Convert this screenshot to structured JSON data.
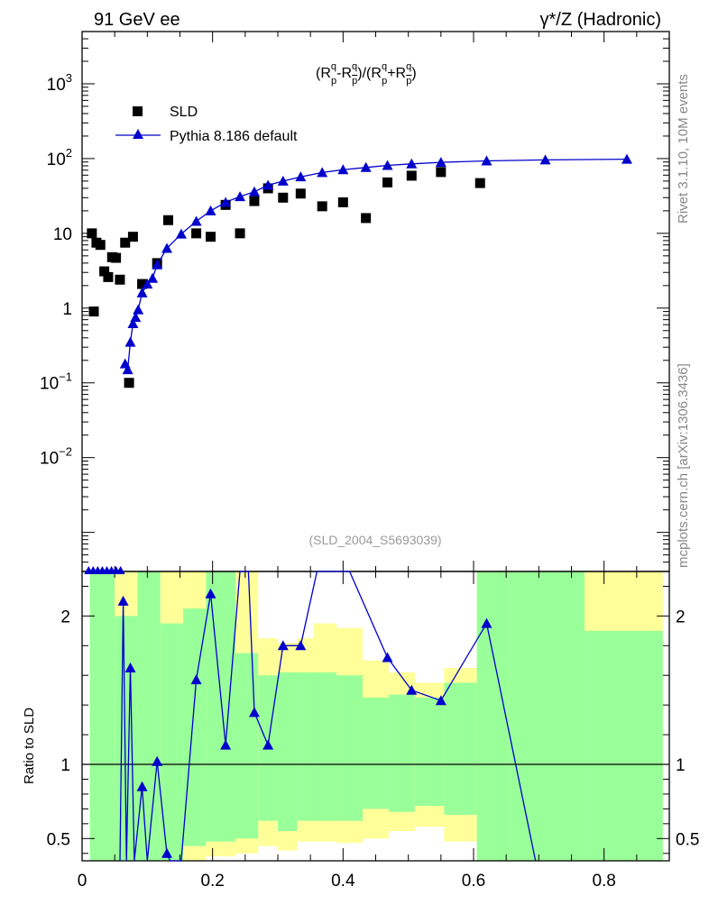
{
  "header": {
    "left": "91 GeV ee",
    "right": "γ*/Z (Hadronic)"
  },
  "side_labels": {
    "rivet": "Rivet 3.1.10,  10M events",
    "site": "mcplots.cern.ch [arXiv:1306.3436]"
  },
  "colors": {
    "data": "#000000",
    "mc": "#0000cc",
    "band_inner": "#99ff99",
    "band_outer": "#ffff99"
  },
  "chart_data": [
    {
      "type": "scatter",
      "title_parts": {
        "open": "(R",
        "minus": "-R",
        "mid": ")/(R",
        "plus": "+R",
        "close": ")",
        "sup": "q",
        "sub": "p",
        "subbar": "p"
      },
      "analysis": "(SLD_2004_S5693039)",
      "yscale": "log",
      "xlim": [
        0,
        0.9
      ],
      "ylim": [
        0.0003,
        5000
      ],
      "yticks": [
        {
          "v": 0.01,
          "base": "10",
          "exp": "−2"
        },
        {
          "v": 0.1,
          "base": "10",
          "exp": "−1"
        },
        {
          "v": 1,
          "base": "1",
          "exp": ""
        },
        {
          "v": 10,
          "base": "10",
          "exp": ""
        },
        {
          "v": 100,
          "base": "10",
          "exp": "2"
        },
        {
          "v": 1000,
          "base": "10",
          "exp": "3"
        }
      ],
      "legend_position": "top-left",
      "series": [
        {
          "name": "SLD",
          "marker": "square",
          "points": [
            [
              0.015,
              10
            ],
            [
              0.018,
              0.9
            ],
            [
              0.022,
              7.5
            ],
            [
              0.028,
              7
            ],
            [
              0.034,
              3.1
            ],
            [
              0.04,
              2.6
            ],
            [
              0.046,
              4.8
            ],
            [
              0.052,
              4.7
            ],
            [
              0.058,
              2.4
            ],
            [
              0.066,
              7.5
            ],
            [
              0.072,
              0.1
            ],
            [
              0.078,
              9
            ],
            [
              0.092,
              2.1
            ],
            [
              0.115,
              4
            ],
            [
              0.132,
              15
            ],
            [
              0.175,
              10
            ],
            [
              0.197,
              9
            ],
            [
              0.22,
              24
            ],
            [
              0.242,
              10
            ],
            [
              0.264,
              27
            ],
            [
              0.285,
              40
            ],
            [
              0.308,
              30
            ],
            [
              0.335,
              34
            ],
            [
              0.368,
              23
            ],
            [
              0.4,
              26
            ],
            [
              0.435,
              16
            ],
            [
              0.468,
              48
            ],
            [
              0.505,
              59
            ],
            [
              0.55,
              66
            ],
            [
              0.61,
              47
            ]
          ]
        },
        {
          "name": "Pythia 8.186 default",
          "marker": "triangle",
          "points": [
            [
              0.066,
              0.18
            ],
            [
              0.07,
              0.15
            ],
            [
              0.074,
              0.35
            ],
            [
              0.078,
              0.62
            ],
            [
              0.082,
              0.75
            ],
            [
              0.086,
              0.95
            ],
            [
              0.092,
              1.6
            ],
            [
              0.1,
              2.1
            ],
            [
              0.108,
              2.5
            ],
            [
              0.115,
              3.8
            ],
            [
              0.13,
              6.3
            ],
            [
              0.152,
              9.8
            ],
            [
              0.175,
              14.5
            ],
            [
              0.197,
              20
            ],
            [
              0.22,
              26
            ],
            [
              0.242,
              31
            ],
            [
              0.264,
              36
            ],
            [
              0.285,
              44
            ],
            [
              0.308,
              50
            ],
            [
              0.335,
              57
            ],
            [
              0.368,
              65
            ],
            [
              0.4,
              71
            ],
            [
              0.435,
              76
            ],
            [
              0.468,
              81
            ],
            [
              0.505,
              85
            ],
            [
              0.55,
              89
            ],
            [
              0.62,
              93
            ],
            [
              0.71,
              96
            ],
            [
              0.835,
              98
            ]
          ]
        }
      ]
    },
    {
      "type": "line",
      "ylabel": "Ratio to SLD",
      "xlim": [
        0,
        0.9
      ],
      "ylim": [
        0.35,
        2.3
      ],
      "yticks": [
        0.5,
        1,
        2
      ],
      "xticks": [
        0,
        0.2,
        0.4,
        0.6,
        0.8
      ],
      "xtick_labels": [
        "0",
        "0.2",
        "0.4",
        "0.6",
        "0.8"
      ],
      "reference_line": 1,
      "bands": [
        {
          "x0": 0.012,
          "x1": 0.05,
          "inner": [
            0.35,
            2.3
          ],
          "outer": [
            0.35,
            2.3
          ]
        },
        {
          "x0": 0.05,
          "x1": 0.085,
          "inner": [
            0.35,
            2.0
          ],
          "outer": [
            0.35,
            2.3
          ]
        },
        {
          "x0": 0.085,
          "x1": 0.12,
          "inner": [
            0.35,
            2.3
          ],
          "outer": [
            0.35,
            2.3
          ]
        },
        {
          "x0": 0.12,
          "x1": 0.155,
          "inner": [
            0.35,
            1.95
          ],
          "outer": [
            0.35,
            2.3
          ]
        },
        {
          "x0": 0.155,
          "x1": 0.19,
          "inner": [
            0.45,
            2.05
          ],
          "outer": [
            0.35,
            2.3
          ]
        },
        {
          "x0": 0.19,
          "x1": 0.235,
          "inner": [
            0.48,
            2.3
          ],
          "outer": [
            0.38,
            2.3
          ]
        },
        {
          "x0": 0.235,
          "x1": 0.27,
          "inner": [
            0.5,
            1.75
          ],
          "outer": [
            0.4,
            2.3
          ]
        },
        {
          "x0": 0.27,
          "x1": 0.3,
          "inner": [
            0.62,
            1.6
          ],
          "outer": [
            0.45,
            1.85
          ]
        },
        {
          "x0": 0.3,
          "x1": 0.33,
          "inner": [
            0.55,
            1.62
          ],
          "outer": [
            0.42,
            1.82
          ]
        },
        {
          "x0": 0.33,
          "x1": 0.355,
          "inner": [
            0.62,
            1.62
          ],
          "outer": [
            0.48,
            1.85
          ]
        },
        {
          "x0": 0.355,
          "x1": 0.39,
          "inner": [
            0.62,
            1.62
          ],
          "outer": [
            0.48,
            1.95
          ]
        },
        {
          "x0": 0.39,
          "x1": 0.43,
          "inner": [
            0.62,
            1.6
          ],
          "outer": [
            0.47,
            1.92
          ]
        },
        {
          "x0": 0.43,
          "x1": 0.47,
          "inner": [
            0.7,
            1.45
          ],
          "outer": [
            0.5,
            1.7
          ]
        },
        {
          "x0": 0.47,
          "x1": 0.51,
          "inner": [
            0.68,
            1.47
          ],
          "outer": [
            0.55,
            1.62
          ]
        },
        {
          "x0": 0.51,
          "x1": 0.555,
          "inner": [
            0.72,
            1.45
          ],
          "outer": [
            0.58,
            1.55
          ]
        },
        {
          "x0": 0.555,
          "x1": 0.605,
          "inner": [
            0.66,
            1.55
          ],
          "outer": [
            0.48,
            1.65
          ]
        },
        {
          "x0": 0.605,
          "x1": 0.655,
          "inner": [
            0.35,
            2.3
          ],
          "outer": [
            0.35,
            2.3
          ]
        },
        {
          "x0": 0.655,
          "x1": 0.77,
          "inner": [
            0.35,
            2.3
          ],
          "outer": [
            0.35,
            2.3
          ]
        },
        {
          "x0": 0.77,
          "x1": 0.89,
          "inner": [
            0.35,
            1.9
          ],
          "outer": [
            0.35,
            2.3
          ]
        }
      ],
      "series": [
        {
          "name": "Pythia 8.186 default",
          "points": [
            [
              0.058,
              0.35
            ],
            [
              0.063,
              2.1
            ],
            [
              0.068,
              0.35
            ],
            [
              0.074,
              1.65
            ],
            [
              0.08,
              0.35
            ],
            [
              0.092,
              0.85
            ],
            [
              0.1,
              0.35
            ],
            [
              0.115,
              1.02
            ],
            [
              0.13,
              0.4
            ],
            [
              0.135,
              0.35
            ],
            [
              0.152,
              0.35
            ],
            [
              0.175,
              1.57
            ],
            [
              0.197,
              2.15
            ],
            [
              0.22,
              1.13
            ],
            [
              0.242,
              2.3
            ],
            [
              0.255,
              2.3
            ],
            [
              0.264,
              1.35
            ],
            [
              0.285,
              1.13
            ],
            [
              0.308,
              1.8
            ],
            [
              0.335,
              1.8
            ],
            [
              0.36,
              2.3
            ],
            [
              0.41,
              2.3
            ],
            [
              0.468,
              1.72
            ],
            [
              0.505,
              1.5
            ],
            [
              0.55,
              1.43
            ],
            [
              0.62,
              1.95
            ],
            [
              0.695,
              0.35
            ]
          ],
          "markers": [
            [
              0.063,
              2.1
            ],
            [
              0.074,
              1.65
            ],
            [
              0.092,
              0.85
            ],
            [
              0.115,
              1.02
            ],
            [
              0.13,
              0.4
            ],
            [
              0.175,
              1.57
            ],
            [
              0.197,
              2.15
            ],
            [
              0.22,
              1.13
            ],
            [
              0.264,
              1.35
            ],
            [
              0.285,
              1.13
            ],
            [
              0.308,
              1.8
            ],
            [
              0.335,
              1.8
            ],
            [
              0.468,
              1.72
            ],
            [
              0.505,
              1.5
            ],
            [
              0.55,
              1.43
            ],
            [
              0.62,
              1.95
            ]
          ]
        }
      ]
    }
  ]
}
